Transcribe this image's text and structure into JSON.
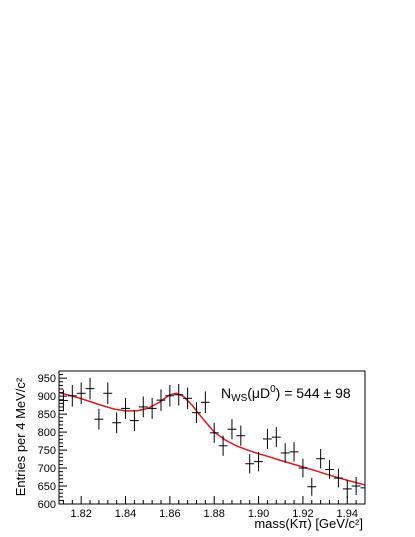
{
  "chart_data": {
    "type": "scatter",
    "title": "",
    "xlabel": "mass(Kπ) [GeV/c²]",
    "ylabel": "Entries per 4 MeV/c²",
    "xlim": [
      1.81,
      1.948
    ],
    "ylim": [
      600,
      970
    ],
    "x_ticks": [
      1.82,
      1.84,
      1.86,
      1.88,
      1.9,
      1.92,
      1.94
    ],
    "x_tick_labels": [
      "1.82",
      "1.84",
      "1.86",
      "1.88",
      "1.90",
      "1.92",
      "1.94"
    ],
    "y_ticks": [
      600,
      650,
      700,
      750,
      800,
      850,
      900,
      950
    ],
    "y_tick_labels": [
      "600",
      "650",
      "700",
      "750",
      "800",
      "850",
      "900",
      "950"
    ],
    "grid": false,
    "annotation": {
      "prefix": "N",
      "subscript": "WS",
      "paren_open": "(",
      "mu": "μ",
      "particle": "D",
      "superscript": "0",
      "paren_close": ")",
      "value_text": " = 544 ± 98"
    },
    "series": [
      {
        "kind": "points",
        "color": "#000000",
        "bin_half_width": 0.002,
        "x": [
          1.812,
          1.816,
          1.82,
          1.824,
          1.828,
          1.832,
          1.836,
          1.84,
          1.844,
          1.848,
          1.852,
          1.856,
          1.86,
          1.864,
          1.868,
          1.872,
          1.876,
          1.88,
          1.884,
          1.888,
          1.892,
          1.896,
          1.9,
          1.904,
          1.908,
          1.912,
          1.916,
          1.92,
          1.924,
          1.928,
          1.932,
          1.936,
          1.94,
          1.944,
          1.948
        ],
        "y": [
          888,
          901,
          908,
          921,
          836,
          908,
          826,
          866,
          832,
          870,
          866,
          889,
          901,
          904,
          894,
          854,
          883,
          798,
          762,
          808,
          790,
          712,
          718,
          781,
          786,
          742,
          745,
          700,
          648,
          726,
          696,
          672,
          642,
          650,
          645
        ],
        "err": [
          30,
          30,
          30,
          30,
          29,
          30,
          29,
          29,
          29,
          29,
          29,
          30,
          30,
          30,
          30,
          29,
          30,
          28,
          28,
          28,
          28,
          27,
          27,
          28,
          28,
          27,
          27,
          26,
          25,
          27,
          26,
          26,
          25,
          25,
          25
        ]
      },
      {
        "kind": "fit",
        "color": "#e8141b",
        "x": [
          1.81,
          1.815,
          1.82,
          1.825,
          1.83,
          1.835,
          1.84,
          1.845,
          1.85,
          1.855,
          1.86,
          1.863,
          1.866,
          1.87,
          1.875,
          1.88,
          1.885,
          1.89,
          1.895,
          1.9,
          1.905,
          1.91,
          1.915,
          1.92,
          1.925,
          1.93,
          1.935,
          1.94,
          1.948
        ],
        "y": [
          910,
          902,
          893,
          883,
          873,
          864,
          859,
          859,
          866,
          882,
          904,
          908,
          900,
          875,
          836,
          800,
          778,
          762,
          750,
          740,
          731,
          721,
          712,
          703,
          694,
          684,
          675,
          666,
          653
        ]
      }
    ]
  }
}
